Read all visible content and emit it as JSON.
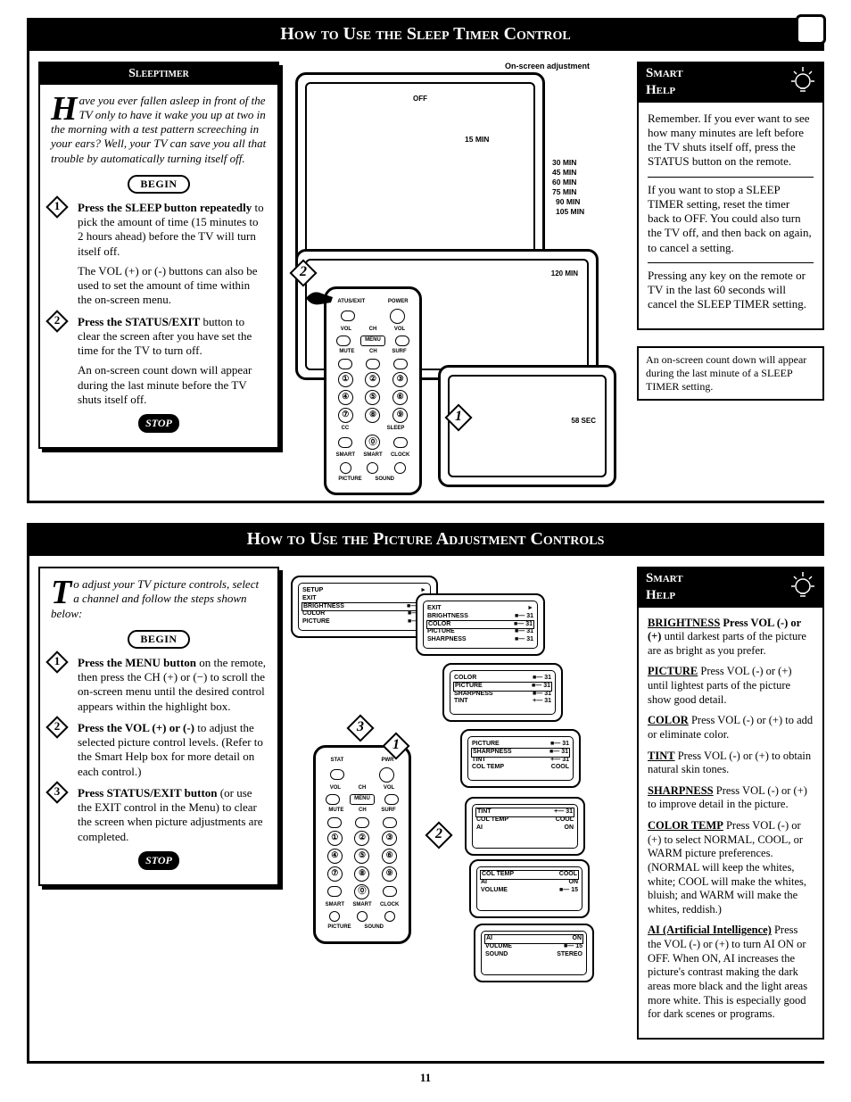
{
  "page_number": "11",
  "section1": {
    "title": "How to Use the Sleep Timer Control",
    "sleeptimer": {
      "header": "Sleeptimer",
      "intro_dropcap": "H",
      "intro_rest": "ave you ever fallen asleep in front of the TV only to have it wake you up at two in the morning with a test pattern screeching in your ears? Well, your TV can save you all that trouble by automatically turning itself off.",
      "begin": "BEGIN",
      "steps": [
        {
          "n": "1",
          "bold": "Press the SLEEP button repeatedly",
          "rest": " to pick the amount of time (15 minutes to 2 hours ahead) before the TV will turn itself off.",
          "extra": "The VOL (+) or (-) buttons can also be used to set the amount of time within the on-screen menu."
        },
        {
          "n": "2",
          "bold": "Press the STATUS/EXIT",
          "rest": " button to clear the screen after you have set the time for the TV to turn off.",
          "extra": "An on-screen count down will appear during the last minute before the TV shuts itself off."
        }
      ],
      "stop": "STOP"
    },
    "diagram": {
      "on_screen_adjustment": "On-screen adjustment",
      "off": "OFF",
      "t15": "15 MIN",
      "t30": "30 MIN",
      "t45": "45 MIN",
      "t60": "60 MIN",
      "t75": "75 MIN",
      "t90": "90 MIN",
      "t105": "105 MIN",
      "t120": "120 MIN",
      "countdown": "58 SEC",
      "remote_labels": {
        "status": "ATUS/EXIT",
        "power": "POWER",
        "vol": "VOL",
        "ch": "CH",
        "mute": "MUTE",
        "surf": "SURF",
        "menu": "MENU",
        "cc": "CC",
        "sleep": "SLEEP",
        "smart_pic": "SMART",
        "smart_snd": "SMART",
        "clock": "CLOCK",
        "pic": "PICTURE",
        "sound": "SOUND"
      }
    },
    "smart_help": {
      "title1": "Smart",
      "title2": "Help",
      "p1": "Remember. If you ever want to see how many minutes are left before the TV shuts itself off, press the STATUS button on the remote.",
      "p2": "If you want to stop a SLEEP TIMER setting, reset the timer back to OFF. You could also turn the TV off, and then back on again, to cancel a setting.",
      "p3": "Pressing any key on the remote or TV in the last 60 seconds will cancel the SLEEP TIMER setting.",
      "callout": "An on-screen count down will appear during the last minute of a SLEEP TIMER setting."
    }
  },
  "section2": {
    "title": "How to Use the Picture Adjustment Controls",
    "left": {
      "intro_dropcap": "T",
      "intro_rest": "o adjust your TV picture controls, select a channel and follow the steps shown below:",
      "begin": "BEGIN",
      "steps": [
        {
          "n": "1",
          "bold": "Press the MENU button",
          "rest": " on the remote, then press the CH (+) or (−) to scroll the on-screen menu until the desired control appears within the highlight box."
        },
        {
          "n": "2",
          "bold": "Press the VOL (+) or (-)",
          "rest": " to adjust the selected picture control levels. (Refer to the Smart Help box for more detail on each control.)"
        },
        {
          "n": "3",
          "bold": "Press STATUS/EXIT button",
          "rest": " (or use the EXIT control in the Menu) to clear the screen when picture adjustments are completed."
        }
      ],
      "stop": "STOP"
    },
    "osd": {
      "screens": [
        {
          "lines": [
            [
              "SETUP",
              "►"
            ],
            [
              "EXIT",
              "►"
            ],
            [
              "BRIGHTNESS",
              "■— 31"
            ],
            [
              "COLOR",
              "■— 31"
            ],
            [
              "PICTURE",
              "■— 31"
            ]
          ],
          "hl": 2
        },
        {
          "lines": [
            [
              "EXIT",
              "►"
            ],
            [
              "BRIGHTNESS",
              "■— 31"
            ],
            [
              "COLOR",
              "■— 31"
            ],
            [
              "PICTURE",
              "■— 31"
            ],
            [
              "SHARPNESS",
              "■— 31"
            ]
          ],
          "hl": 2
        },
        {
          "lines": [
            [
              "COLOR",
              "■— 31"
            ],
            [
              "PICTURE",
              "■— 31"
            ],
            [
              "SHARPNESS",
              "■— 31"
            ],
            [
              "TINT",
              "+— 31"
            ]
          ],
          "hl": 1
        },
        {
          "lines": [
            [
              "PICTURE",
              "■— 31"
            ],
            [
              "SHARPNESS",
              "■— 31"
            ],
            [
              "TINT",
              "+— 31"
            ],
            [
              "COL TEMP",
              "COOL"
            ]
          ],
          "hl": 1
        },
        {
          "lines": [
            [
              "TINT",
              "+— 31"
            ],
            [
              "COL TEMP",
              "COOL"
            ],
            [
              "AI",
              "ON"
            ]
          ],
          "hl": 0
        },
        {
          "lines": [
            [
              "COL TEMP",
              "COOL"
            ],
            [
              "AI",
              "ON"
            ],
            [
              "VOLUME",
              "■— 15"
            ]
          ],
          "hl": 0
        },
        {
          "lines": [
            [
              "AI",
              "ON"
            ],
            [
              "VOLUME",
              "■— 15"
            ],
            [
              "SOUND",
              "STEREO"
            ]
          ],
          "hl": 0
        }
      ]
    },
    "smart_help": {
      "title1": "Smart",
      "title2": "Help",
      "items": [
        {
          "label": "BRIGHTNESS",
          "text": "Press VOL (-) or (+) until darkest parts of the picture are as bright as you prefer.",
          "bold_prefix": "Press VOL (-) or (+)"
        },
        {
          "label": "PICTURE",
          "text": "Press VOL (-) or (+) until lightest parts of the picture show good detail."
        },
        {
          "label": "COLOR",
          "text": "Press VOL (-) or (+) to add or eliminate color."
        },
        {
          "label": "TINT",
          "text": "Press VOL (-) or (+) to obtain natural skin tones."
        },
        {
          "label": "SHARPNESS",
          "text": "Press VOL (-) or (+) to improve detail in the picture."
        },
        {
          "label": "COLOR TEMP",
          "text": "Press VOL (-) or (+) to select NORMAL, COOL, or WARM picture preferences. (NORMAL will keep the whites, white; COOL will make the whites, bluish; and WARM will make the whites, reddish.)"
        },
        {
          "label": "AI (Artificial Intelligence)",
          "text": "Press the VOL (-) or (+) to turn AI ON or OFF. When ON, AI increases the picture's contrast making the dark areas more black and the light areas more white. This is especially good for dark scenes or programs."
        }
      ]
    }
  }
}
